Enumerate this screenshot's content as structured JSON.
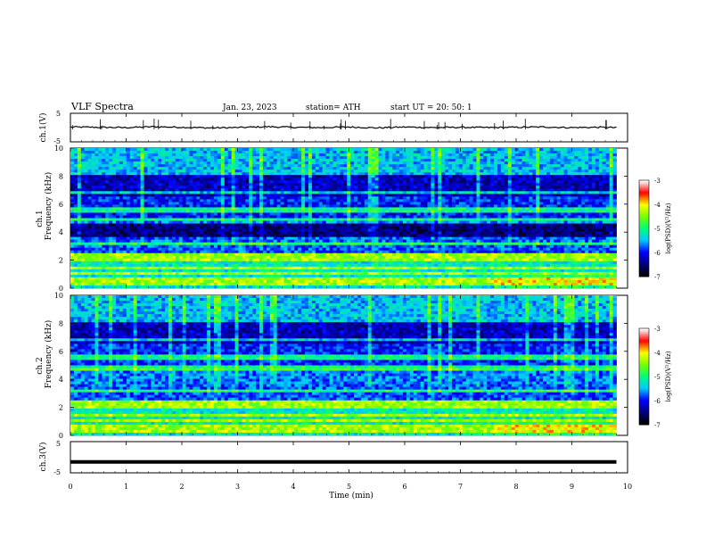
{
  "header": {
    "title": "VLF Spectra",
    "date": "Jan. 23, 2023",
    "station": "station= ATH",
    "start": "start  UT  =    20: 50: 1"
  },
  "chart_data": [
    {
      "type": "line",
      "ylabel": "ch.1(V)",
      "x": [
        0,
        0.5,
        1,
        1.5,
        2,
        2.5,
        3,
        3.5,
        4,
        4.5,
        5,
        5.5,
        6,
        6.5,
        7,
        7.5,
        8,
        8.5,
        9,
        9.5,
        9.8
      ],
      "y": [
        0.2,
        0.1,
        0.0,
        0.3,
        0.1,
        -0.1,
        0.0,
        0.3,
        0.1,
        0.0,
        0.2,
        -0.1,
        0.2,
        0.0,
        0.1,
        0.0,
        0.1,
        0.2,
        0.0,
        0.1,
        0.0
      ],
      "xlim": [
        0,
        10
      ],
      "ylim": [
        -5,
        5
      ],
      "yticks": [
        "5",
        "-5"
      ]
    },
    {
      "type": "heatmap",
      "ylabel": "ch.1",
      "ylabel2": "Frequency (kHz)",
      "ylim": [
        0,
        10
      ],
      "yticks": [
        "0",
        "2",
        "4",
        "6",
        "8",
        "10"
      ],
      "xlim": [
        0,
        9.8
      ],
      "colorbar": {
        "label": "log(PSD)(V²/Hz)",
        "ticks": [
          "-3",
          "-4",
          "-5",
          "-6",
          "-7"
        ],
        "range": [
          -7,
          -3
        ]
      }
    },
    {
      "type": "heatmap",
      "ylabel": "ch.2",
      "ylabel2": "Frequency (kHz)",
      "ylim": [
        0,
        10
      ],
      "yticks": [
        "0",
        "2",
        "4",
        "6",
        "8",
        "10"
      ],
      "xlim": [
        0,
        9.8
      ],
      "colorbar": {
        "label": "log(PSD)(V²/Hz)",
        "ticks": [
          "-3",
          "-4",
          "-5",
          "-6",
          "-7"
        ],
        "range": [
          -7,
          -3
        ]
      }
    },
    {
      "type": "line",
      "ylabel": "ch.3(V)",
      "x": [
        0,
        9.8
      ],
      "y": [
        -1.5,
        -1.5
      ],
      "xlim": [
        0,
        10
      ],
      "ylim": [
        -5,
        5
      ],
      "yticks": [
        "5",
        "-5"
      ],
      "xlabel": "Time  (min)",
      "xticks": [
        "0",
        "1",
        "2",
        "3",
        "4",
        "5",
        "6",
        "7",
        "8",
        "9",
        "10"
      ]
    }
  ],
  "colors": {
    "ink": "#000000",
    "colormap": [
      "#000000",
      "#000080",
      "#0000ff",
      "#00ffff",
      "#00ff00",
      "#ffff00",
      "#ff0000",
      "#ffffff"
    ]
  }
}
